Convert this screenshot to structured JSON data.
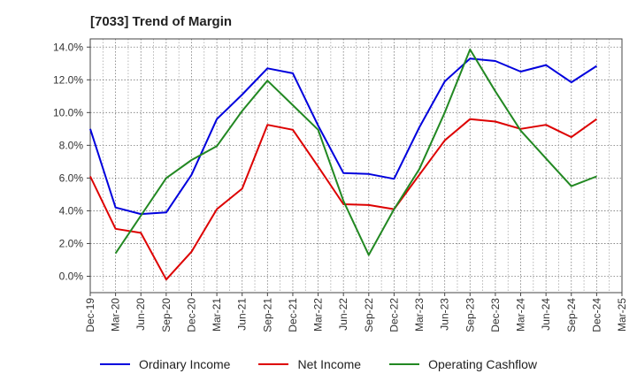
{
  "header": {
    "title": "[7033]  Trend of Margin"
  },
  "legend": {
    "items": [
      {
        "label": "Ordinary Income",
        "color": "#0000dd"
      },
      {
        "label": "Net Income",
        "color": "#dd0000"
      },
      {
        "label": "Operating Cashflow",
        "color": "#228822"
      }
    ]
  },
  "chart_data": {
    "type": "line",
    "title": "[7033]  Trend of Margin",
    "xlabel": "",
    "ylabel": "",
    "ylim": [
      -1.0,
      14.5
    ],
    "yticks": [
      0,
      2,
      4,
      6,
      8,
      10,
      12,
      14
    ],
    "ytick_labels": [
      "0.0%",
      "2.0%",
      "4.0%",
      "6.0%",
      "8.0%",
      "10.0%",
      "12.0%",
      "14.0%"
    ],
    "categories": [
      "Dec-19",
      "Mar-20",
      "Jun-20",
      "Sep-20",
      "Dec-20",
      "Mar-21",
      "Jun-21",
      "Sep-21",
      "Dec-21",
      "Mar-22",
      "Jun-22",
      "Sep-22",
      "Dec-22",
      "Mar-23",
      "Jun-23",
      "Sep-23",
      "Dec-23",
      "Mar-24",
      "Jun-24",
      "Sep-24",
      "Dec-24",
      "Mar-25"
    ],
    "grid": true,
    "legend_position": "bottom",
    "series": [
      {
        "name": "Ordinary Income",
        "color": "#0000dd",
        "values": [
          9.0,
          4.2,
          3.8,
          3.9,
          6.2,
          9.6,
          11.1,
          12.7,
          12.4,
          9.2,
          6.3,
          6.25,
          5.95,
          9.1,
          11.9,
          13.3,
          13.15,
          12.5,
          12.9,
          11.85,
          12.85,
          null
        ]
      },
      {
        "name": "Net Income",
        "color": "#dd0000",
        "values": [
          6.1,
          2.9,
          2.65,
          -0.2,
          1.5,
          4.1,
          5.35,
          9.25,
          8.95,
          6.7,
          4.4,
          4.35,
          4.1,
          6.2,
          8.3,
          9.6,
          9.45,
          9.0,
          9.25,
          8.5,
          9.6,
          null
        ]
      },
      {
        "name": "Operating Cashflow",
        "color": "#228822",
        "values": [
          null,
          1.4,
          3.7,
          6.0,
          7.1,
          7.95,
          10.1,
          11.95,
          10.45,
          8.95,
          4.6,
          1.3,
          4.1,
          6.55,
          10.0,
          13.85,
          11.3,
          8.9,
          7.2,
          5.5,
          6.1,
          null
        ]
      }
    ]
  }
}
